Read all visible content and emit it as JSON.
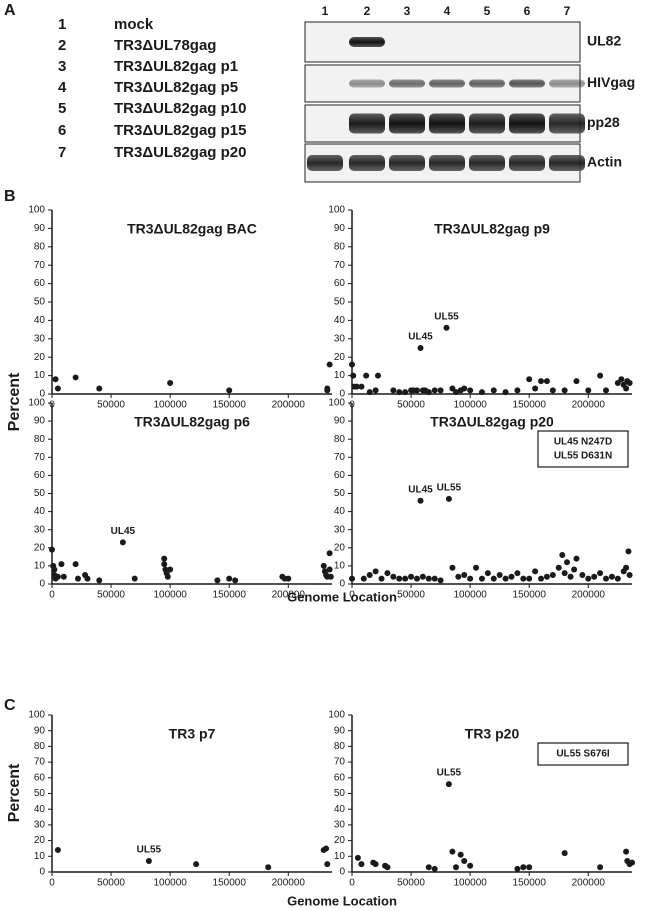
{
  "figure": {
    "panel_labels": [
      "A",
      "B",
      "C"
    ],
    "panel_b": {
      "x_label": "Genome Location",
      "y_label": "Percent"
    },
    "panel_c": {
      "x_label": "Genome Location",
      "y_label": "Percent"
    }
  },
  "blot": {
    "lanes": [
      {
        "number": "1",
        "name": "mock"
      },
      {
        "number": "2",
        "name": "TR3ΔUL78gag"
      },
      {
        "number": "3",
        "name": "TR3ΔUL82gag p1"
      },
      {
        "number": "4",
        "name": "TR3ΔUL82gag p5"
      },
      {
        "number": "5",
        "name": "TR3ΔUL82gag p10"
      },
      {
        "number": "6",
        "name": "TR3ΔUL82gag p15"
      },
      {
        "number": "7",
        "name": "TR3ΔUL82gag p20"
      }
    ],
    "rows": [
      "UL82",
      "HIVgag",
      "pp28",
      "Actin"
    ]
  },
  "chart_data": [
    {
      "type": "scatter",
      "title": "TR3ΔUL82gag BAC",
      "x": [
        3000,
        5000,
        20000,
        40000,
        100000,
        150000,
        233000,
        233000,
        235000
      ],
      "values": [
        8,
        3,
        9,
        3,
        6,
        2,
        2,
        3,
        16
      ],
      "xlim": [
        0,
        237000
      ],
      "ylim": [
        0,
        100
      ],
      "xticks": [
        0,
        50000,
        100000,
        150000,
        200000
      ],
      "yticks": [
        0,
        10,
        20,
        30,
        40,
        50,
        60,
        70,
        80,
        90,
        100
      ],
      "color": "#1a1a1a",
      "annotations": []
    },
    {
      "type": "scatter",
      "title": "TR3ΔUL82gag p9",
      "x": [
        0,
        1000,
        2000,
        4000,
        8000,
        12000,
        15000,
        20000,
        22000,
        35000,
        40000,
        45000,
        50000,
        52000,
        55000,
        58000,
        60000,
        62000,
        65000,
        70000,
        75000,
        80000,
        85000,
        88000,
        92000,
        95000,
        100000,
        110000,
        120000,
        130000,
        140000,
        150000,
        155000,
        160000,
        165000,
        170000,
        180000,
        190000,
        200000,
        210000,
        215000,
        225000,
        228000,
        230000,
        232000,
        233000,
        235000
      ],
      "values": [
        16,
        10,
        4,
        4,
        4,
        10,
        1,
        2,
        10,
        2,
        1,
        1,
        2,
        2,
        2,
        25,
        2,
        2,
        1,
        2,
        2,
        36,
        3,
        1,
        2,
        3,
        2,
        1,
        2,
        1,
        2,
        8,
        3,
        7,
        7,
        2,
        2,
        7,
        2,
        10,
        2,
        6,
        8,
        5,
        3,
        7,
        6
      ],
      "xlim": [
        0,
        237000
      ],
      "ylim": [
        0,
        100
      ],
      "xticks": [
        0,
        50000,
        100000,
        150000,
        200000
      ],
      "yticks": [
        0,
        10,
        20,
        30,
        40,
        50,
        60,
        70,
        80,
        90,
        100
      ],
      "color": "#1a1a1a",
      "annotations": [
        {
          "text": "UL45",
          "x": 58000,
          "y": 25
        },
        {
          "text": "UL55",
          "x": 80000,
          "y": 36
        }
      ]
    },
    {
      "type": "scatter",
      "title": "TR3ΔUL82gag p6",
      "x": [
        0,
        1000,
        2000,
        2000,
        3000,
        5000,
        8000,
        10000,
        20000,
        22000,
        28000,
        30000,
        40000,
        60000,
        70000,
        95000,
        95000,
        96000,
        97000,
        98000,
        100000,
        140000,
        150000,
        155000,
        195000,
        197000,
        200000,
        230000,
        231000,
        232000,
        233000,
        235000,
        235000,
        236000
      ],
      "values": [
        19,
        10,
        8,
        5,
        3,
        4,
        11,
        4,
        11,
        3,
        5,
        3,
        2,
        23,
        3,
        14,
        11,
        8,
        6,
        4,
        8,
        2,
        3,
        2,
        4,
        3,
        3,
        10,
        7,
        5,
        4,
        17,
        8,
        4
      ],
      "xlim": [
        0,
        237000
      ],
      "ylim": [
        0,
        100
      ],
      "xticks": [
        0,
        50000,
        100000,
        150000,
        200000
      ],
      "yticks": [
        0,
        10,
        20,
        30,
        40,
        50,
        60,
        70,
        80,
        90,
        100
      ],
      "color": "#1a1a1a",
      "annotations": [
        {
          "text": "UL45",
          "x": 60000,
          "y": 23
        }
      ]
    },
    {
      "type": "scatter",
      "title": "TR3ΔUL82gag p20",
      "x": [
        0,
        10000,
        15000,
        20000,
        25000,
        30000,
        35000,
        40000,
        45000,
        50000,
        55000,
        58000,
        60000,
        65000,
        70000,
        75000,
        82000,
        85000,
        90000,
        95000,
        100000,
        105000,
        110000,
        115000,
        120000,
        125000,
        130000,
        135000,
        140000,
        145000,
        150000,
        155000,
        160000,
        165000,
        170000,
        175000,
        178000,
        180000,
        182000,
        185000,
        188000,
        190000,
        195000,
        200000,
        205000,
        210000,
        215000,
        220000,
        225000,
        230000,
        232000,
        234000,
        235000
      ],
      "values": [
        3,
        3,
        5,
        7,
        3,
        6,
        4,
        3,
        3,
        4,
        3,
        46,
        4,
        3,
        3,
        2,
        47,
        9,
        4,
        5,
        3,
        9,
        3,
        6,
        3,
        5,
        3,
        4,
        6,
        3,
        3,
        7,
        3,
        4,
        5,
        9,
        16,
        6,
        12,
        4,
        8,
        14,
        5,
        3,
        4,
        6,
        3,
        4,
        3,
        7,
        9,
        18,
        5
      ],
      "xlim": [
        0,
        237000
      ],
      "ylim": [
        0,
        100
      ],
      "xticks": [
        0,
        50000,
        100000,
        150000,
        200000
      ],
      "yticks": [
        0,
        10,
        20,
        30,
        40,
        50,
        60,
        70,
        80,
        90,
        100
      ],
      "color": "#1a1a1a",
      "annotations": [
        {
          "text": "UL45",
          "x": 58000,
          "y": 46
        },
        {
          "text": "UL55",
          "x": 82000,
          "y": 47
        }
      ],
      "mutations": [
        "UL45 N247D",
        "UL55 D631N"
      ]
    },
    {
      "type": "scatter",
      "title": "TR3 p7",
      "x": [
        5000,
        82000,
        122000,
        183000,
        230000,
        232000,
        233000
      ],
      "values": [
        14,
        7,
        5,
        3,
        14,
        15,
        5
      ],
      "xlim": [
        0,
        237000
      ],
      "ylim": [
        0,
        100
      ],
      "xticks": [
        0,
        50000,
        100000,
        150000,
        200000
      ],
      "yticks": [
        0,
        10,
        20,
        30,
        40,
        50,
        60,
        70,
        80,
        90,
        100
      ],
      "color": "#1a1a1a",
      "annotations": [
        {
          "text": "UL55",
          "x": 82000,
          "y": 7
        }
      ]
    },
    {
      "type": "scatter",
      "title": "TR3 p20",
      "x": [
        5000,
        8000,
        18000,
        20000,
        28000,
        30000,
        65000,
        70000,
        82000,
        85000,
        88000,
        92000,
        95000,
        100000,
        140000,
        145000,
        150000,
        180000,
        210000,
        232000,
        233000,
        235000,
        237000
      ],
      "values": [
        9,
        5,
        6,
        5,
        4,
        3,
        3,
        2,
        56,
        13,
        3,
        11,
        7,
        4,
        2,
        3,
        3,
        12,
        3,
        13,
        7,
        5,
        6
      ],
      "xlim": [
        0,
        237000
      ],
      "ylim": [
        0,
        100
      ],
      "xticks": [
        0,
        50000,
        100000,
        150000,
        200000
      ],
      "yticks": [
        0,
        10,
        20,
        30,
        40,
        50,
        60,
        70,
        80,
        90,
        100
      ],
      "color": "#1a1a1a",
      "annotations": [
        {
          "text": "UL55",
          "x": 82000,
          "y": 56
        }
      ],
      "mutations": [
        "UL55 S676I"
      ]
    }
  ]
}
